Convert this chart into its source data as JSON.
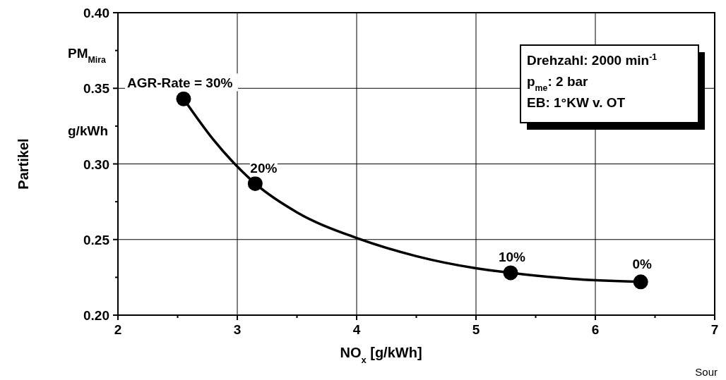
{
  "chart_data": {
    "type": "scatter",
    "xlabel": "NO$_{x}$  [g/kWh]",
    "ylabel": "Partikel",
    "xlim": [
      2,
      7
    ],
    "xticks": [
      2,
      {
        "value": 2.5,
        "label": null
      },
      3,
      {
        "value": 3.5,
        "label": null
      },
      4,
      {
        "value": 4.5,
        "label": null
      },
      5,
      {
        "value": 5.5,
        "label": null
      },
      6,
      {
        "value": 6.5,
        "label": null
      },
      7
    ],
    "ylim": [
      0.2,
      0.4
    ],
    "yticks": [
      {
        "value": 0.2,
        "label": "0.20"
      },
      {
        "value": 0.225,
        "label": null
      },
      0.25,
      {
        "value": 0.275,
        "label": null
      },
      {
        "value": 0.3,
        "label": "0.30"
      },
      {
        "value": 0.325,
        "label": null
      },
      0.35,
      {
        "value": 0.375,
        "label": null
      },
      {
        "value": 0.4,
        "label": "0.40"
      }
    ],
    "grid": true,
    "marker": "circle",
    "series": [
      {
        "type": "line",
        "color": "#000000",
        "marker": "none",
        "x": [
          2.55,
          2.8,
          3.15,
          3.5,
          4,
          4.5,
          5,
          5.29,
          5.8,
          6.38
        ],
        "values": [
          0.343,
          0.316,
          0.287,
          0.268,
          0.251,
          0.239,
          0.231,
          0.228,
          0.224,
          0.222
        ]
      },
      {
        "color": "#000000",
        "x": [
          2.55,
          3.15,
          5.29,
          6.38
        ],
        "values": [
          0.343,
          0.287,
          0.228,
          0.222
        ]
      }
    ],
    "annotations": [
      {
        "text": "AGR-Rate = 30%",
        "x": 2.55,
        "y": 0.343
      },
      {
        "text": "20%",
        "x": 3.15,
        "y": 0.287
      },
      {
        "text": "10%",
        "x": 5.29,
        "y": 0.228
      },
      {
        "text": "0%",
        "x": 6.38,
        "y": 0.222
      },
      "PM$_{Mira}$",
      "g/kWh",
      "Drehzahl: 2000 min$^{-1}$",
      "p$_{me}$: 2 bar",
      "EB: 1°KW v. OT",
      "Sour"
    ]
  }
}
